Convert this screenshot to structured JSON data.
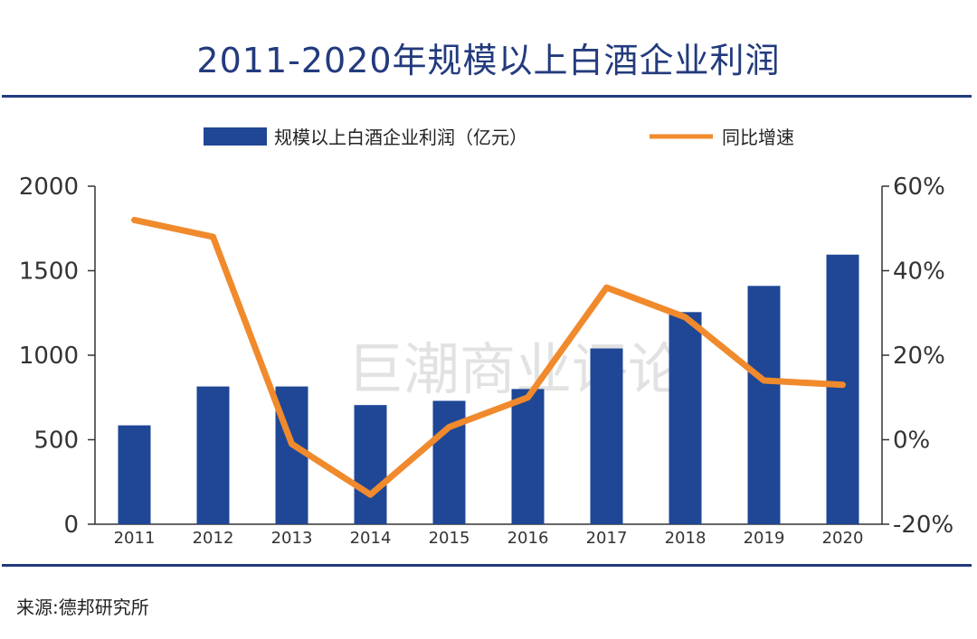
{
  "title": "2011-2020年规模以上白酒企业利润",
  "source": "来源:德邦研究所",
  "watermark": "巨潮商业评论",
  "colors": {
    "bar": "#1f4796",
    "line": "#f08a2c",
    "title": "#233b7d",
    "rule": "#233b7d"
  },
  "chart_data": {
    "type": "bar+line",
    "categories": [
      "2011",
      "2012",
      "2013",
      "2014",
      "2015",
      "2016",
      "2017",
      "2018",
      "2019",
      "2020"
    ],
    "series": [
      {
        "name": "规模以上白酒企业利润（亿元）",
        "type": "bar",
        "axis": "left",
        "values": [
          585,
          815,
          815,
          705,
          730,
          800,
          1040,
          1255,
          1410,
          1595
        ]
      },
      {
        "name": "同比增速",
        "type": "line",
        "axis": "right",
        "values": [
          52,
          48,
          -1,
          -13,
          3,
          10,
          36,
          29,
          14,
          13
        ]
      }
    ],
    "y_left": {
      "min": 0,
      "max": 2000,
      "ticks": [
        0,
        500,
        1000,
        1500,
        2000
      ]
    },
    "y_right": {
      "min": -20,
      "max": 60,
      "ticks": [
        -20,
        0,
        20,
        40,
        60
      ],
      "tick_labels": [
        "-20%",
        "0%",
        "20%",
        "40%",
        "60%"
      ]
    },
    "legend_position": "top-center"
  }
}
